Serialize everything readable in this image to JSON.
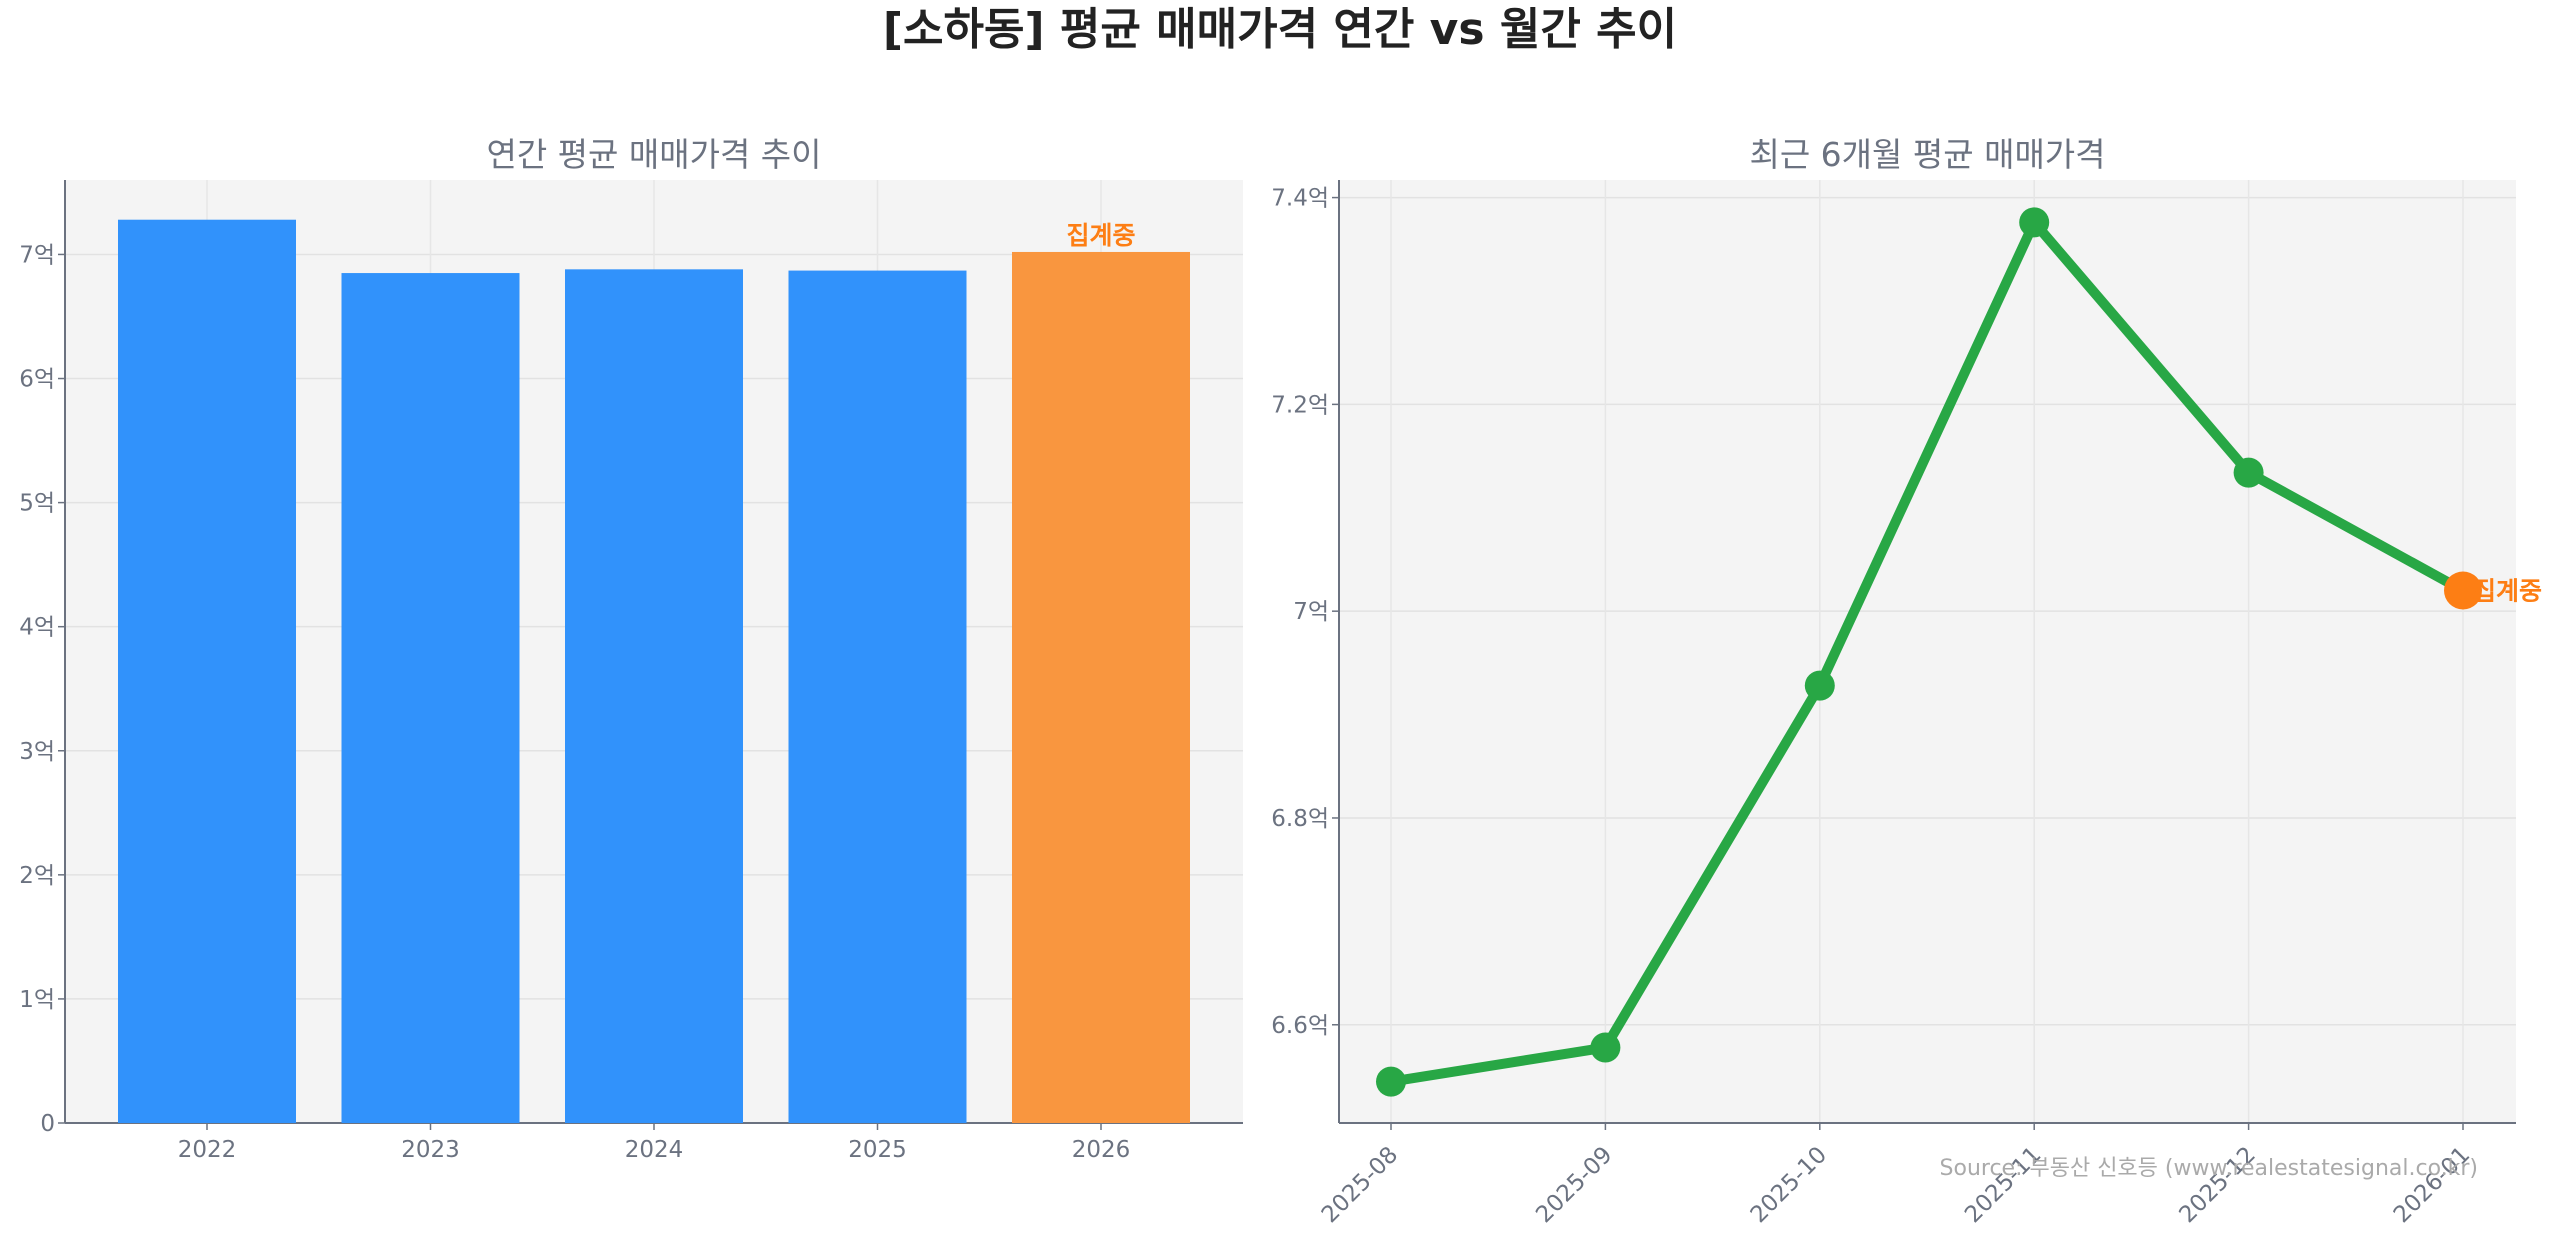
{
  "title": "[소하동] 평균 매매가격 연간 vs 월간 추이",
  "source": "Source: 부동산 신호등 (www.realestatesignal.co.kr)",
  "colors": {
    "bar": "#3192fb",
    "bar_current": "#f9963f",
    "line": "#28a745",
    "current_point": "#fd7e14",
    "annotation": "#fd7e14",
    "plot_bg": "#f4f4f4"
  },
  "chart_data": [
    {
      "type": "bar",
      "title": "연간 평균 매매가격 추이",
      "categories": [
        "2022",
        "2023",
        "2024",
        "2025",
        "2026"
      ],
      "values": [
        7.28,
        6.85,
        6.88,
        6.87,
        7.02
      ],
      "unit": "억",
      "ylim": [
        0,
        7.6
      ],
      "yticks": [
        0,
        1,
        2,
        3,
        4,
        5,
        6,
        7
      ],
      "ytick_labels": [
        "0",
        "1억",
        "2억",
        "3억",
        "4억",
        "5억",
        "6억",
        "7억"
      ],
      "grid": true,
      "annotation": {
        "category": "2026",
        "text": "집계중"
      }
    },
    {
      "type": "line",
      "title": "최근 6개월 평균 매매가격",
      "categories": [
        "2025-08",
        "2025-09",
        "2025-10",
        "2025-11",
        "2025-12",
        "2026-01"
      ],
      "values": [
        6.545,
        6.578,
        6.928,
        7.376,
        7.134,
        7.02
      ],
      "unit": "억",
      "ylim": [
        6.505,
        7.417
      ],
      "yticks": [
        6.6,
        6.8,
        7.0,
        7.2,
        7.4
      ],
      "ytick_labels": [
        "6.6억",
        "6.8억",
        "7억",
        "7.2억",
        "7.4억"
      ],
      "grid": true,
      "annotation": {
        "category": "2026-01",
        "text": "집계중"
      }
    }
  ]
}
